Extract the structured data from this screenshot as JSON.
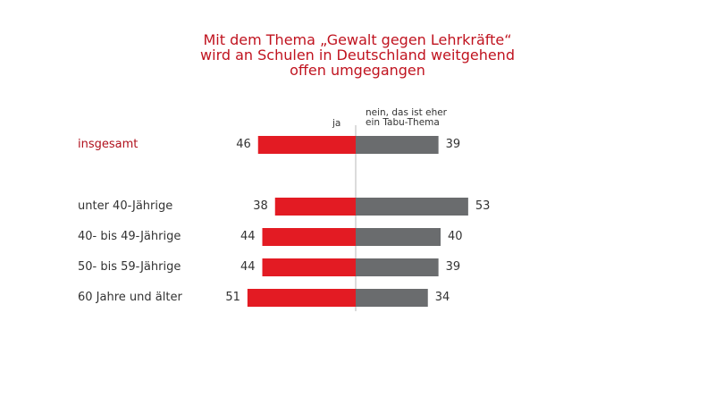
{
  "chart_data": {
    "type": "bar",
    "orientation": "horizontal-diverging",
    "title": "Mit dem Thema „Gewalt gegen Lehrkräfte“ wird an Schulen in Deutschland weitgehend offen umgegangen",
    "title_lines": [
      "Mit dem Thema „Gewalt gegen Lehrkräfte“",
      "wird an Schulen in Deutschland weitgehend",
      "offen umgegangen"
    ],
    "categories": [
      "insgesamt",
      "unter 40-Jährige",
      "40- bis 49-Jährige",
      "50- bis 59-Jährige",
      "60 Jahre und älter"
    ],
    "series": [
      {
        "name": "ja",
        "color": "#e31b23",
        "values": [
          46,
          38,
          44,
          44,
          51
        ]
      },
      {
        "name": "nein, das ist eher ein Tabu-Thema",
        "name_lines": [
          "nein, das ist eher",
          "ein Tabu-Thema"
        ],
        "color": "#6a6c6e",
        "values": [
          39,
          53,
          40,
          39,
          34
        ]
      }
    ],
    "xlabel": "",
    "ylabel": "",
    "grid": false,
    "legend": "top"
  }
}
